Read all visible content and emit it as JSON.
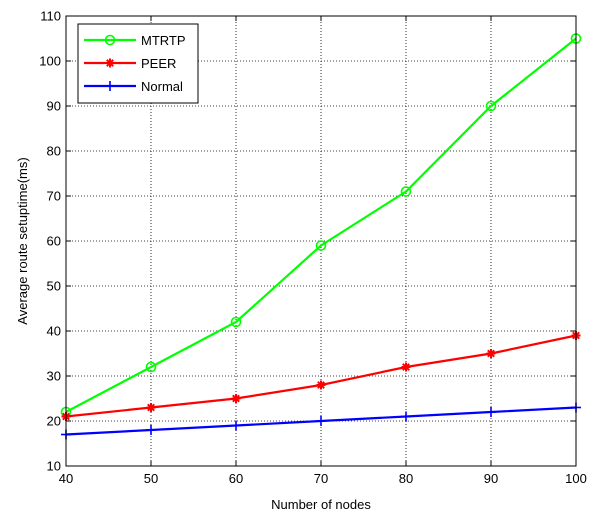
{
  "chart_data": {
    "type": "line",
    "title": "",
    "xlabel": "Number of nodes",
    "ylabel": "Average route setuptime(ms)",
    "x": [
      40,
      50,
      60,
      70,
      80,
      90,
      100
    ],
    "xlim": [
      40,
      100
    ],
    "ylim": [
      10,
      110
    ],
    "xticks": [
      "40",
      "50",
      "60",
      "70",
      "80",
      "90",
      "100"
    ],
    "yticks": [
      "10",
      "20",
      "30",
      "40",
      "50",
      "60",
      "70",
      "80",
      "90",
      "100",
      "110"
    ],
    "grid": true,
    "legend_position": "top-left",
    "series": [
      {
        "name": "MTRTP",
        "color": "#00ff00",
        "marker": "circle",
        "values": [
          22,
          32,
          42,
          59,
          71,
          90,
          105
        ]
      },
      {
        "name": "PEER",
        "color": "#ff0000",
        "marker": "star",
        "values": [
          21,
          23,
          25,
          28,
          32,
          35,
          39
        ]
      },
      {
        "name": "Normal",
        "color": "#0000ff",
        "marker": "plus",
        "values": [
          17,
          18,
          19,
          20,
          21,
          22,
          23
        ]
      }
    ]
  }
}
